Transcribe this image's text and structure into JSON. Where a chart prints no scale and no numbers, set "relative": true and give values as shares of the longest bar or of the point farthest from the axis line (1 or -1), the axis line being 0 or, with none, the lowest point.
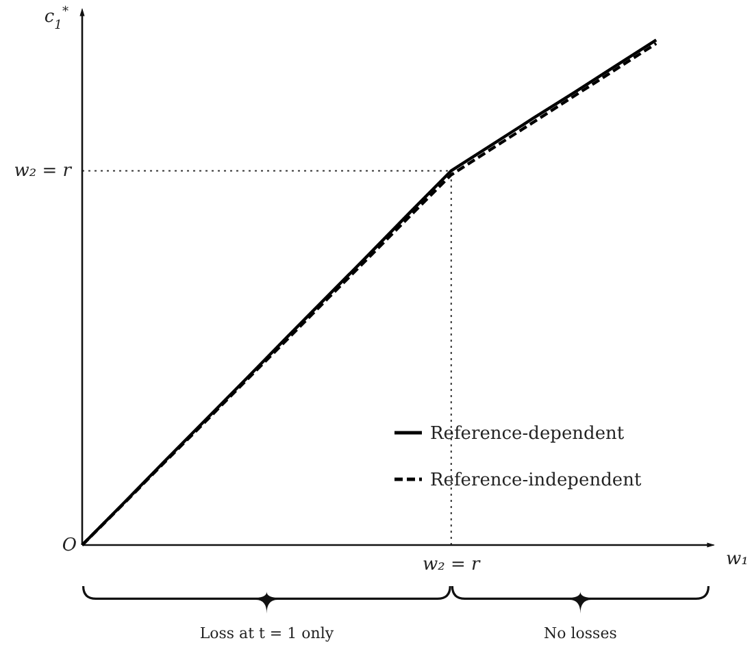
{
  "chart_data": {
    "type": "line",
    "xlabel": "w₁",
    "ylabel": "c$_{1}$$^{*}$",
    "relative": true,
    "categories": [
      null,
      null,
      null,
      null,
      null,
      null,
      null,
      null,
      null,
      null,
      null,
      null,
      null,
      null,
      null
    ],
    "series": [
      {
        "name": "Reference-dependent",
        "color": "#000000",
        "values": [
          0,
          0.082,
          0.165,
          0.247,
          0.329,
          0.412,
          0.494,
          0.576,
          0.659,
          0.741,
          0.793,
          0.845,
          0.896,
          0.948,
          1
        ],
        "line_style": "solid"
      },
      {
        "name": "Reference-independent",
        "color": "#000000",
        "values": [
          0,
          0.081,
          0.163,
          0.244,
          0.326,
          0.407,
          0.489,
          0.57,
          0.652,
          0.733,
          0.785,
          0.837,
          0.889,
          0.941,
          0.993
        ],
        "line_style": "dashed"
      }
    ],
    "annotations": [
      "O",
      "w₂ = r",
      "w₂ = r",
      "Loss at t = 1 only",
      "No losses"
    ],
    "legend": "bottom right",
    "marker": "none"
  }
}
